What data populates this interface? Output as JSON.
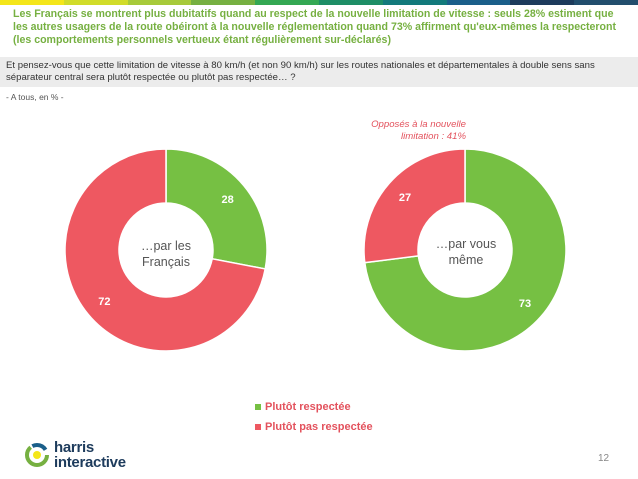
{
  "header": {
    "colors": [
      "#f4e61a",
      "#d1dc2a",
      "#a7ca3a",
      "#76b041",
      "#34a853",
      "#1e8e66",
      "#137a7b",
      "#1b5f8a",
      "#1d3b5c",
      "#224e6d"
    ],
    "headline": "Les Français se montrent plus dubitatifs quand au respect de la nouvelle limitation de vitesse : seuls 28% estiment que les autres usagers de la route obéiront à la nouvelle réglementation quand 73% affirment qu'eux-mêmes la respecteront (les comportements personnels vertueux étant régulièrement sur-déclarés)",
    "question": "Et pensez-vous que cette limitation de vitesse à 80 km/h (et non 90 km/h) sur les routes nationales et départementales à double sens sans séparateur central sera plutôt respectée ou plutôt pas respectée… ?",
    "base": "- A tous, en % -"
  },
  "colors": {
    "green": "#76c043",
    "red": "#ee5861",
    "annotation_red": "#e3525d"
  },
  "chart_data": [
    {
      "type": "pie",
      "center_label": "…par les Français",
      "categories": [
        "Plutôt respectée",
        "Plutôt pas respectée"
      ],
      "values": [
        28,
        72
      ]
    },
    {
      "type": "pie",
      "center_label": "…par vous même",
      "categories": [
        "Plutôt respectée",
        "Plutôt pas respectée"
      ],
      "values": [
        73,
        27
      ],
      "annotation": "Opposés à la nouvelle limitation : 41%"
    }
  ],
  "legend": {
    "items": [
      {
        "label": "Plutôt respectée",
        "color": "#76c043"
      },
      {
        "label": "Plutôt pas respectée",
        "color": "#ee5861"
      }
    ]
  },
  "footer": {
    "logo_line1": "harris",
    "logo_line2": "interactive",
    "page_number": "12"
  }
}
